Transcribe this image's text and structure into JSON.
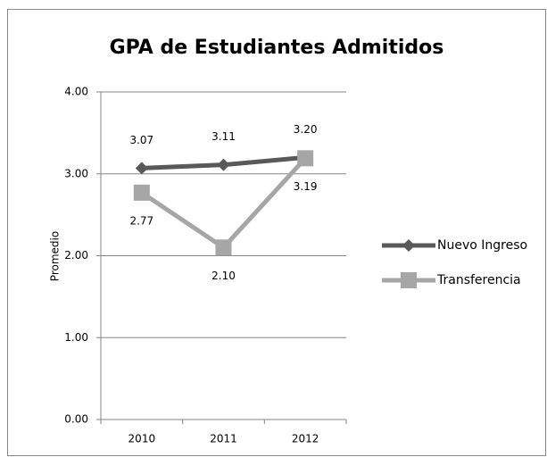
{
  "chart_data": {
    "type": "line",
    "title": "GPA de Estudiantes Admitidos",
    "y_label": "Promedio",
    "categories": [
      "2010",
      "2011",
      "2012"
    ],
    "series": [
      {
        "name": "Nuevo Ingreso",
        "color": "#595959",
        "marker": "diamond",
        "values": [
          3.07,
          3.11,
          3.2
        ],
        "value_labels": [
          "3.07",
          "3.11",
          "3.20"
        ]
      },
      {
        "name": "Transferencia",
        "color": "#a6a6a6",
        "marker": "square",
        "values": [
          2.77,
          2.1,
          3.19
        ],
        "value_labels": [
          "2.77",
          "2.10",
          "3.19"
        ]
      }
    ],
    "ylim": [
      0,
      4
    ],
    "yticks": [
      {
        "value": 0,
        "label": "0.00"
      },
      {
        "value": 1,
        "label": "1.00"
      },
      {
        "value": 2,
        "label": "2.00"
      },
      {
        "value": 3,
        "label": "3.00"
      },
      {
        "value": 4,
        "label": "4.00"
      }
    ],
    "grid": true,
    "legend": "right"
  }
}
